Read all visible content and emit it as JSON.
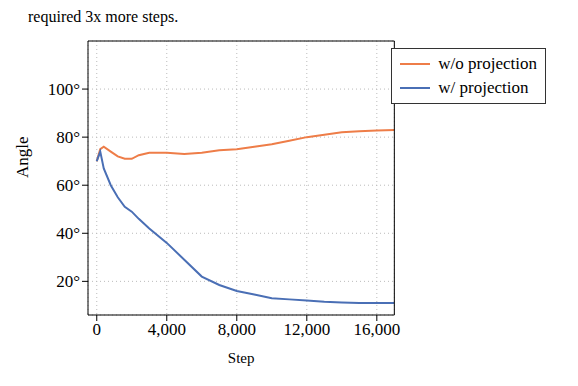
{
  "chart_data": {
    "type": "line",
    "annotations": [
      "required 3x more steps."
    ],
    "x_label": "Step",
    "y_label": "Angle",
    "x": [
      0,
      200,
      400,
      800,
      1200,
      1600,
      2000,
      2400,
      3000,
      4000,
      5000,
      6000,
      7000,
      8000,
      9000,
      10000,
      11000,
      12000,
      13000,
      14000,
      15000,
      16000,
      17000
    ],
    "series": [
      {
        "name": "w/o projection",
        "color": "#ee7d48",
        "values": [
          70,
          75,
          76,
          74,
          72,
          71,
          71,
          72.5,
          73.5,
          73.5,
          73,
          73.5,
          74.5,
          75,
          76,
          77,
          78.5,
          80,
          81,
          82,
          82.5,
          82.8,
          83
        ]
      },
      {
        "name": "w/ projection",
        "color": "#4a6fb5",
        "values": [
          70,
          74,
          67,
          60,
          55,
          51,
          49,
          46,
          42,
          36,
          29,
          22,
          18.5,
          16,
          14.5,
          13,
          12.5,
          12,
          11.5,
          11.2,
          11,
          11,
          11
        ]
      }
    ],
    "xlim": [
      -500,
      17000
    ],
    "xticks": [
      0,
      {
        "value": 4000,
        "label": "4,000"
      },
      {
        "value": 8000,
        "label": "8,000"
      },
      {
        "value": 12000,
        "label": "12,000"
      },
      {
        "value": 16000,
        "label": "16,000"
      }
    ],
    "ylim": [
      6,
      120
    ],
    "yticks": [
      {
        "value": 20,
        "label": "20°"
      },
      {
        "value": 40,
        "label": "40°"
      },
      {
        "value": 60,
        "label": "60°"
      },
      {
        "value": 80,
        "label": "80°"
      },
      {
        "value": 100,
        "label": "100°"
      }
    ],
    "grid": true,
    "legend": "top-right"
  }
}
